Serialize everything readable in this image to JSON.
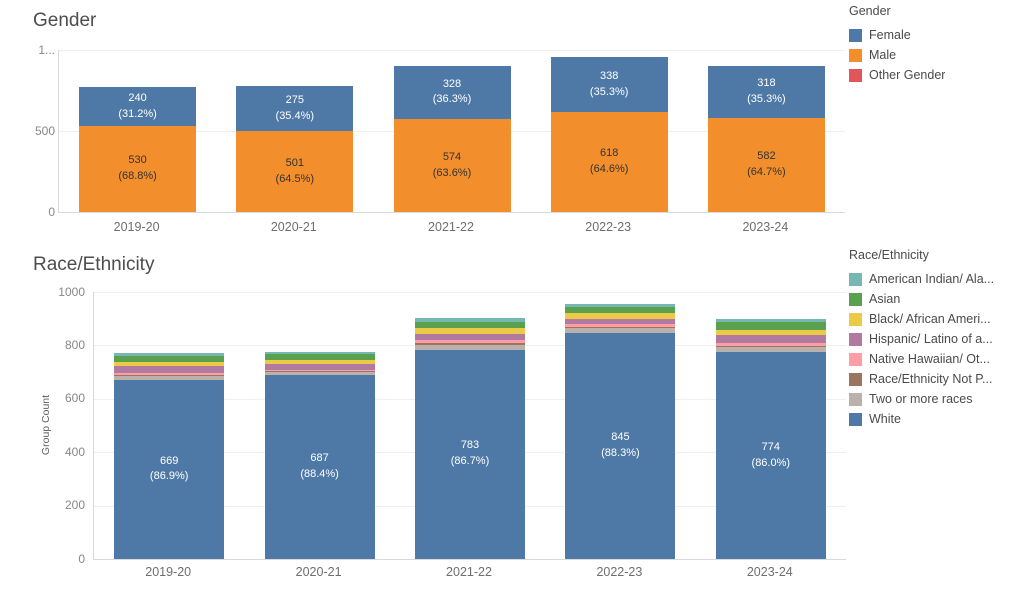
{
  "page": {
    "background": "#ffffff"
  },
  "chart_data": [
    {
      "type": "bar",
      "stacked": true,
      "title": "Gender",
      "categories": [
        "2019-20",
        "2020-21",
        "2021-22",
        "2022-23",
        "2023-24"
      ],
      "ylim": [
        0,
        1000
      ],
      "yticks": [
        {
          "value": 0,
          "label": "0"
        },
        {
          "value": 500,
          "label": "500"
        },
        {
          "value": 1000,
          "label": "1..."
        }
      ],
      "ylabel": "",
      "grid": true,
      "legend_position": "right",
      "series": [
        {
          "name": "Male",
          "color": "#f28e2b",
          "label_color": "#333333",
          "values": [
            530,
            501,
            574,
            618,
            582
          ],
          "labels": [
            [
              "530",
              "(68.8%)"
            ],
            [
              "501",
              "(64.5%)"
            ],
            [
              "574",
              "(63.6%)"
            ],
            [
              "618",
              "(64.6%)"
            ],
            [
              "582",
              "(64.7%)"
            ]
          ]
        },
        {
          "name": "Female",
          "color": "#4e79a7",
          "label_color": "#ffffff",
          "values": [
            240,
            275,
            328,
            338,
            318
          ],
          "labels": [
            [
              "240",
              "(31.2%)"
            ],
            [
              "275",
              "(35.4%)"
            ],
            [
              "328",
              "(36.3%)"
            ],
            [
              "338",
              "(35.3%)"
            ],
            [
              "318",
              "(35.3%)"
            ]
          ]
        }
      ],
      "legend": {
        "title": "Gender",
        "entries": [
          {
            "label": "Female",
            "color": "#4e79a7"
          },
          {
            "label": "Male",
            "color": "#f28e2b"
          },
          {
            "label": "Other Gender",
            "color": "#e15759"
          }
        ]
      }
    },
    {
      "type": "bar",
      "stacked": true,
      "title": "Race/Ethnicity",
      "categories": [
        "2019-20",
        "2020-21",
        "2021-22",
        "2022-23",
        "2023-24"
      ],
      "ylim": [
        0,
        1000
      ],
      "yticks": [
        {
          "value": 0,
          "label": "0"
        },
        {
          "value": 200,
          "label": "200"
        },
        {
          "value": 400,
          "label": "400"
        },
        {
          "value": 600,
          "label": "600"
        },
        {
          "value": 800,
          "label": "800"
        },
        {
          "value": 1000,
          "label": "1000"
        }
      ],
      "ylabel": "Group Count",
      "grid": true,
      "legend_position": "right",
      "series": [
        {
          "name": "White",
          "color": "#4e79a7",
          "label_color": "#ffffff",
          "values": [
            669,
            687,
            783,
            845,
            774
          ],
          "labels": [
            [
              "669",
              "(86.9%)"
            ],
            [
              "687",
              "(88.4%)"
            ],
            [
              "783",
              "(86.7%)"
            ],
            [
              "845",
              "(88.3%)"
            ],
            [
              "774",
              "(86.0%)"
            ]
          ]
        },
        {
          "name": "Two or more races",
          "color": "#bab0ac",
          "values": [
            16,
            14,
            17,
            19,
            19
          ]
        },
        {
          "name": "Race/Ethnicity Not P...",
          "color": "#9c755f",
          "values": [
            5,
            3,
            9,
            6,
            6
          ]
        },
        {
          "name": "Native Hawaiian/ Ot...",
          "color": "#ff9da7",
          "values": [
            5,
            4,
            9,
            11,
            10
          ]
        },
        {
          "name": "Hispanic/ Latino of a...",
          "color": "#b07aa1",
          "values": [
            26,
            21,
            26,
            19,
            31
          ]
        },
        {
          "name": "Black/ African Ameri...",
          "color": "#edc948",
          "values": [
            18,
            17,
            20,
            22,
            19
          ]
        },
        {
          "name": "Asian",
          "color": "#59a14f",
          "values": [
            23,
            21,
            24,
            22,
            29
          ]
        },
        {
          "name": "American Indian/ Ala...",
          "color": "#76b7b2",
          "values": [
            8,
            10,
            15,
            13,
            12
          ]
        }
      ],
      "legend": {
        "title": "Race/Ethnicity",
        "entries": [
          {
            "label": "American Indian/ Ala...",
            "color": "#76b7b2"
          },
          {
            "label": "Asian",
            "color": "#59a14f"
          },
          {
            "label": "Black/ African Ameri...",
            "color": "#edc948"
          },
          {
            "label": "Hispanic/ Latino of a...",
            "color": "#b07aa1"
          },
          {
            "label": "Native Hawaiian/ Ot...",
            "color": "#ff9da7"
          },
          {
            "label": "Race/Ethnicity Not P...",
            "color": "#9c755f"
          },
          {
            "label": "Two or more races",
            "color": "#bab0ac"
          },
          {
            "label": "White",
            "color": "#4e79a7"
          }
        ]
      }
    }
  ]
}
